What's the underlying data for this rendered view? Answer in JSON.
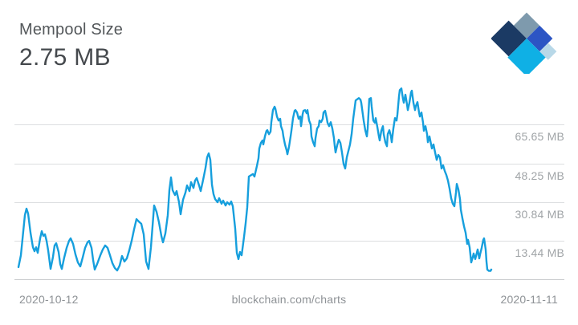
{
  "header": {
    "title": "Mempool Size",
    "current_value": "2.75 MB"
  },
  "logo": {
    "name": "blockchain-com-logo",
    "colors": {
      "slate": "#7e9aad",
      "navy": "#1b3a64",
      "royal": "#2c55c4",
      "pale": "#b8d8e8",
      "cyan": "#0fb0e5"
    }
  },
  "footer": {
    "start_date": "2020-10-12",
    "watermark": "blockchain.com/charts",
    "end_date": "2020-11-11"
  },
  "chart_data": {
    "type": "line",
    "title": "Mempool Size",
    "current_value_mb": 2.75,
    "unit": "MB",
    "x_axis": {
      "start_label": "2020-10-12",
      "end_label": "2020-11-11"
    },
    "watermark": "blockchain.com/charts",
    "grid": "horizontal",
    "legend": "none",
    "ylim_mb": [
      -4.5,
      95
    ],
    "y_gridlines": [
      {
        "value": 65.65,
        "label": "65.65 MB"
      },
      {
        "value": 48.25,
        "label": "48.25 MB"
      },
      {
        "value": 30.84,
        "label": "30.84 MB"
      },
      {
        "value": 13.44,
        "label": "13.44 MB"
      }
    ],
    "line_color": "#169fdd",
    "points_format": "[x_px_in_720w_canvas, value_in_MB]",
    "points": [
      [
        23,
        1.8
      ],
      [
        26,
        7.1
      ],
      [
        29,
        17.9
      ],
      [
        31,
        25.1
      ],
      [
        33,
        28.0
      ],
      [
        35,
        25.8
      ],
      [
        38,
        17.2
      ],
      [
        41,
        10.7
      ],
      [
        43,
        8.9
      ],
      [
        45,
        10.7
      ],
      [
        47,
        8.2
      ],
      [
        50,
        14.7
      ],
      [
        52,
        17.9
      ],
      [
        54,
        15.8
      ],
      [
        56,
        16.5
      ],
      [
        58,
        13.6
      ],
      [
        60,
        9.3
      ],
      [
        63,
        1.0
      ],
      [
        66,
        6.4
      ],
      [
        68,
        11.5
      ],
      [
        70,
        12.5
      ],
      [
        73,
        8.6
      ],
      [
        75,
        3.2
      ],
      [
        77,
        1.0
      ],
      [
        80,
        6.1
      ],
      [
        83,
        10.4
      ],
      [
        86,
        13.6
      ],
      [
        88,
        14.7
      ],
      [
        91,
        12.2
      ],
      [
        94,
        7.5
      ],
      [
        97,
        3.9
      ],
      [
        100,
        2.1
      ],
      [
        103,
        6.1
      ],
      [
        106,
        10.4
      ],
      [
        109,
        12.9
      ],
      [
        111,
        13.6
      ],
      [
        114,
        10.4
      ],
      [
        116,
        5.0
      ],
      [
        118,
        0.7
      ],
      [
        121,
        3.2
      ],
      [
        125,
        7.1
      ],
      [
        128,
        9.7
      ],
      [
        131,
        11.5
      ],
      [
        134,
        10.4
      ],
      [
        137,
        7.1
      ],
      [
        140,
        3.6
      ],
      [
        143,
        1.4
      ],
      [
        146,
        0.3
      ],
      [
        149,
        2.5
      ],
      [
        152,
        6.8
      ],
      [
        155,
        4.3
      ],
      [
        158,
        5.7
      ],
      [
        161,
        9.3
      ],
      [
        164,
        13.6
      ],
      [
        167,
        18.7
      ],
      [
        170,
        23.3
      ],
      [
        173,
        22.2
      ],
      [
        176,
        21.2
      ],
      [
        179,
        16.5
      ],
      [
        182,
        4.3
      ],
      [
        185,
        1.0
      ],
      [
        188,
        10.7
      ],
      [
        190,
        20.1
      ],
      [
        192,
        29.4
      ],
      [
        195,
        26.6
      ],
      [
        198,
        21.9
      ],
      [
        201,
        15.8
      ],
      [
        203,
        12.9
      ],
      [
        206,
        16.9
      ],
      [
        209,
        25.1
      ],
      [
        211,
        36.3
      ],
      [
        213,
        42.0
      ],
      [
        215,
        36.3
      ],
      [
        218,
        34.1
      ],
      [
        220,
        35.9
      ],
      [
        223,
        30.9
      ],
      [
        225,
        25.5
      ],
      [
        228,
        32.0
      ],
      [
        231,
        35.2
      ],
      [
        233,
        38.4
      ],
      [
        236,
        35.9
      ],
      [
        238,
        39.9
      ],
      [
        241,
        37.3
      ],
      [
        243,
        40.6
      ],
      [
        245,
        41.7
      ],
      [
        248,
        38.4
      ],
      [
        250,
        35.9
      ],
      [
        253,
        40.9
      ],
      [
        256,
        46.3
      ],
      [
        258,
        51.0
      ],
      [
        260,
        52.8
      ],
      [
        262,
        49.9
      ],
      [
        264,
        38.8
      ],
      [
        266,
        34.5
      ],
      [
        268,
        32.3
      ],
      [
        271,
        30.9
      ],
      [
        273,
        32.7
      ],
      [
        276,
        30.2
      ],
      [
        278,
        31.6
      ],
      [
        281,
        29.4
      ],
      [
        283,
        30.9
      ],
      [
        286,
        29.8
      ],
      [
        288,
        31.2
      ],
      [
        290,
        29.1
      ],
      [
        293,
        19.0
      ],
      [
        295,
        8.2
      ],
      [
        297,
        5.4
      ],
      [
        299,
        8.6
      ],
      [
        301,
        7.1
      ],
      [
        304,
        15.4
      ],
      [
        306,
        21.5
      ],
      [
        308,
        28.7
      ],
      [
        310,
        42.4
      ],
      [
        313,
        43.1
      ],
      [
        315,
        43.5
      ],
      [
        317,
        42.4
      ],
      [
        320,
        47.1
      ],
      [
        322,
        50.6
      ],
      [
        323,
        55.0
      ],
      [
        325,
        57.5
      ],
      [
        327,
        58.6
      ],
      [
        328,
        56.8
      ],
      [
        330,
        60.4
      ],
      [
        332,
        62.9
      ],
      [
        333,
        63.2
      ],
      [
        335,
        61.4
      ],
      [
        337,
        62.5
      ],
      [
        338,
        66.8
      ],
      [
        340,
        72.2
      ],
      [
        342,
        73.7
      ],
      [
        343,
        72.9
      ],
      [
        345,
        69.3
      ],
      [
        347,
        67.5
      ],
      [
        349,
        68.3
      ],
      [
        350,
        65.0
      ],
      [
        352,
        62.9
      ],
      [
        353,
        60.4
      ],
      [
        355,
        56.8
      ],
      [
        357,
        54.2
      ],
      [
        358,
        52.4
      ],
      [
        360,
        55.7
      ],
      [
        362,
        60.4
      ],
      [
        363,
        62.9
      ],
      [
        365,
        68.6
      ],
      [
        367,
        71.9
      ],
      [
        368,
        72.2
      ],
      [
        370,
        71.1
      ],
      [
        372,
        68.3
      ],
      [
        374,
        69.3
      ],
      [
        375,
        65.0
      ],
      [
        377,
        70.4
      ],
      [
        378,
        71.9
      ],
      [
        380,
        72.2
      ],
      [
        382,
        70.8
      ],
      [
        383,
        72.2
      ],
      [
        385,
        67.5
      ],
      [
        387,
        65.7
      ],
      [
        388,
        60.4
      ],
      [
        390,
        57.8
      ],
      [
        392,
        56.0
      ],
      [
        393,
        59.6
      ],
      [
        395,
        63.9
      ],
      [
        397,
        65.0
      ],
      [
        398,
        67.5
      ],
      [
        400,
        66.8
      ],
      [
        402,
        68.3
      ],
      [
        403,
        71.1
      ],
      [
        405,
        71.9
      ],
      [
        407,
        68.6
      ],
      [
        408,
        66.5
      ],
      [
        410,
        65.0
      ],
      [
        412,
        66.8
      ],
      [
        414,
        63.9
      ],
      [
        416,
        59.6
      ],
      [
        417,
        56.0
      ],
      [
        418,
        53.2
      ],
      [
        420,
        56.4
      ],
      [
        422,
        58.9
      ],
      [
        424,
        57.5
      ],
      [
        426,
        53.2
      ],
      [
        428,
        48.1
      ],
      [
        430,
        46.0
      ],
      [
        432,
        51.0
      ],
      [
        434,
        53.9
      ],
      [
        436,
        56.8
      ],
      [
        438,
        61.4
      ],
      [
        440,
        68.3
      ],
      [
        443,
        76.5
      ],
      [
        447,
        77.6
      ],
      [
        449,
        76.9
      ],
      [
        450,
        75.5
      ],
      [
        453,
        67.5
      ],
      [
        455,
        63.2
      ],
      [
        457,
        60.4
      ],
      [
        458,
        63.9
      ],
      [
        460,
        77.2
      ],
      [
        462,
        77.6
      ],
      [
        463,
        73.7
      ],
      [
        465,
        67.5
      ],
      [
        467,
        66.5
      ],
      [
        468,
        68.6
      ],
      [
        470,
        64.7
      ],
      [
        472,
        60.4
      ],
      [
        473,
        58.6
      ],
      [
        475,
        62.9
      ],
      [
        477,
        65.0
      ],
      [
        478,
        61.4
      ],
      [
        480,
        57.8
      ],
      [
        482,
        56.0
      ],
      [
        483,
        61.4
      ],
      [
        485,
        63.2
      ],
      [
        487,
        60.4
      ],
      [
        488,
        57.8
      ],
      [
        490,
        63.9
      ],
      [
        492,
        68.6
      ],
      [
        494,
        67.5
      ],
      [
        495,
        70.1
      ],
      [
        497,
        78.3
      ],
      [
        498,
        81.2
      ],
      [
        500,
        81.9
      ],
      [
        502,
        77.2
      ],
      [
        503,
        75.5
      ],
      [
        505,
        79.1
      ],
      [
        507,
        74.7
      ],
      [
        508,
        72.2
      ],
      [
        510,
        75.5
      ],
      [
        512,
        80.1
      ],
      [
        513,
        80.9
      ],
      [
        515,
        75.5
      ],
      [
        517,
        72.2
      ],
      [
        518,
        74.0
      ],
      [
        520,
        75.8
      ],
      [
        522,
        71.1
      ],
      [
        523,
        69.3
      ],
      [
        525,
        71.1
      ],
      [
        527,
        66.5
      ],
      [
        528,
        62.9
      ],
      [
        530,
        65.0
      ],
      [
        532,
        61.4
      ],
      [
        533,
        57.8
      ],
      [
        535,
        60.4
      ],
      [
        537,
        56.8
      ],
      [
        538,
        55.0
      ],
      [
        540,
        56.8
      ],
      [
        542,
        53.2
      ],
      [
        544,
        49.9
      ],
      [
        546,
        52.1
      ],
      [
        548,
        51.0
      ],
      [
        550,
        46.0
      ],
      [
        552,
        47.4
      ],
      [
        554,
        44.9
      ],
      [
        556,
        43.1
      ],
      [
        558,
        40.6
      ],
      [
        560,
        37.0
      ],
      [
        562,
        32.7
      ],
      [
        564,
        30.2
      ],
      [
        566,
        29.1
      ],
      [
        568,
        35.2
      ],
      [
        569,
        39.1
      ],
      [
        571,
        36.6
      ],
      [
        573,
        32.3
      ],
      [
        574,
        27.6
      ],
      [
        576,
        23.7
      ],
      [
        578,
        20.1
      ],
      [
        580,
        17.2
      ],
      [
        582,
        12.2
      ],
      [
        583,
        14.0
      ],
      [
        585,
        10.7
      ],
      [
        587,
        3.9
      ],
      [
        589,
        6.4
      ],
      [
        590,
        7.9
      ],
      [
        592,
        5.4
      ],
      [
        594,
        8.2
      ],
      [
        595,
        9.7
      ],
      [
        597,
        5.7
      ],
      [
        598,
        7.5
      ],
      [
        600,
        10.4
      ],
      [
        602,
        14.0
      ],
      [
        603,
        14.7
      ],
      [
        605,
        9.7
      ],
      [
        606,
        4.3
      ],
      [
        607,
        0.7
      ],
      [
        609,
        0.1
      ],
      [
        611,
        0.1
      ],
      [
        612,
        0.7
      ]
    ]
  }
}
